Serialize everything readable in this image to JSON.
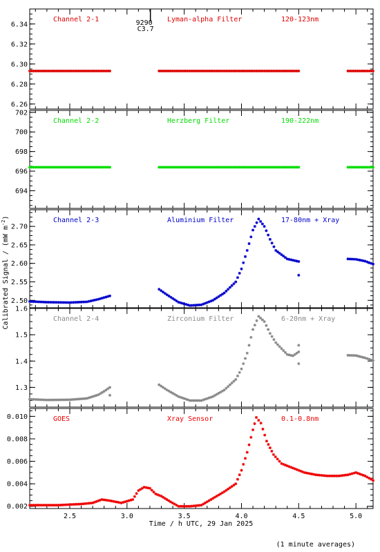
{
  "ylabel": "Calibrated Signal / (mW m",
  "ylabel_sup": "-2",
  "ylabel_end": ")",
  "xlabel": "Time / h UTC, 29 Jan 2025",
  "footnote": "(1 minute averages)",
  "marker_annotation": {
    "text1": "9290",
    "text2": "C3.7",
    "x": 3.15
  },
  "xaxis": {
    "min": 2.15,
    "max": 5.15,
    "ticks": [
      2.5,
      3.0,
      3.5,
      4.0,
      4.5,
      5.0
    ],
    "tick_labels": [
      "2.5",
      "3.0",
      "3.5",
      "4.0",
      "4.5",
      "5.0"
    ]
  },
  "colors": {
    "ch1": "#dd0000",
    "ch2": "#00dd00",
    "ch3": "#0000cc",
    "ch4": "#888888",
    "goes": "#ee0000"
  },
  "chart_data": [
    {
      "type": "scatter",
      "panel": "ch1",
      "labels": [
        "Channel 2-1",
        "Lyman-alpha Filter",
        "120-123nm"
      ],
      "ylim": [
        6.255,
        6.355
      ],
      "yticks": [
        6.26,
        6.28,
        6.3,
        6.32,
        6.34
      ],
      "ytick_labels": [
        "6.26",
        "6.28",
        "6.30",
        "6.32",
        "6.34"
      ],
      "segments": [
        {
          "x": [
            2.15,
            2.85
          ],
          "y": [
            6.293,
            6.293
          ]
        },
        {
          "x": [
            3.28,
            4.5
          ],
          "y": [
            6.293,
            6.293
          ]
        },
        {
          "x": [
            4.93,
            5.15
          ],
          "y": [
            6.293,
            6.293
          ]
        }
      ]
    },
    {
      "type": "scatter",
      "panel": "ch2",
      "labels": [
        "Channel 2-2",
        "Herzberg Filter",
        "190-222nm"
      ],
      "ylim": [
        692.2,
        702.2
      ],
      "yticks": [
        694,
        696,
        698,
        700,
        702
      ],
      "ytick_labels": [
        "694",
        "696",
        "698",
        "700",
        "702"
      ],
      "segments": [
        {
          "x": [
            2.15,
            2.85
          ],
          "y": [
            696.4,
            696.4
          ]
        },
        {
          "x": [
            3.28,
            4.5
          ],
          "y": [
            696.4,
            696.4
          ]
        },
        {
          "x": [
            4.93,
            5.15
          ],
          "y": [
            696.4,
            696.4
          ]
        }
      ]
    },
    {
      "type": "scatter",
      "panel": "ch3",
      "labels": [
        "Channel 2-3",
        "Aluminium Filter",
        "17-80nm + Xray"
      ],
      "ylim": [
        2.48,
        2.745
      ],
      "yticks": [
        2.5,
        2.55,
        2.6,
        2.65,
        2.7
      ],
      "ytick_labels": [
        "2.50",
        "2.55",
        "2.60",
        "2.65",
        "2.70"
      ],
      "segments": [
        {
          "x": [
            2.15,
            2.3,
            2.5,
            2.65,
            2.75,
            2.85
          ],
          "y": [
            2.497,
            2.495,
            2.494,
            2.496,
            2.503,
            2.512
          ]
        },
        {
          "x": [
            3.28,
            3.35,
            3.45,
            3.55,
            3.65,
            3.75,
            3.85,
            3.95,
            4.0,
            4.05,
            4.1,
            4.15,
            4.2,
            4.25,
            4.3,
            4.4,
            4.5
          ],
          "y": [
            2.53,
            2.515,
            2.495,
            2.486,
            2.488,
            2.5,
            2.52,
            2.55,
            2.585,
            2.635,
            2.69,
            2.72,
            2.7,
            2.665,
            2.635,
            2.612,
            2.605
          ]
        },
        {
          "x": [
            4.5
          ],
          "y": [
            2.568
          ]
        },
        {
          "x": [
            4.93,
            5.0,
            5.08,
            5.15
          ],
          "y": [
            2.612,
            2.611,
            2.606,
            2.598
          ]
        }
      ]
    },
    {
      "type": "scatter",
      "panel": "ch4",
      "labels": [
        "Channel 2-4",
        "Zirconium Filter",
        "6-20nm + Xray"
      ],
      "ylim": [
        1.225,
        1.6
      ],
      "yticks": [
        1.3,
        1.4,
        1.5,
        1.6
      ],
      "ytick_labels": [
        "1.3",
        "1.4",
        "1.5",
        "1.6"
      ],
      "segments": [
        {
          "x": [
            2.15,
            2.3,
            2.5,
            2.65,
            2.75,
            2.8,
            2.85
          ],
          "y": [
            1.255,
            1.252,
            1.253,
            1.258,
            1.272,
            1.285,
            1.3
          ]
        },
        {
          "x": [
            2.85
          ],
          "y": [
            1.27
          ]
        },
        {
          "x": [
            3.28,
            3.35,
            3.45,
            3.55,
            3.65,
            3.75,
            3.85,
            3.95,
            4.0,
            4.05,
            4.1,
            4.15,
            4.2,
            4.25,
            4.3,
            4.4,
            4.45,
            4.5
          ],
          "y": [
            1.31,
            1.29,
            1.265,
            1.25,
            1.25,
            1.265,
            1.29,
            1.33,
            1.37,
            1.43,
            1.52,
            1.57,
            1.55,
            1.505,
            1.47,
            1.425,
            1.42,
            1.435
          ]
        },
        {
          "x": [
            4.5
          ],
          "y": [
            1.46
          ]
        },
        {
          "x": [
            4.5
          ],
          "y": [
            1.39
          ]
        },
        {
          "x": [
            4.93,
            5.0,
            5.08,
            5.15
          ],
          "y": [
            1.422,
            1.421,
            1.412,
            1.402
          ]
        }
      ]
    },
    {
      "type": "scatter",
      "panel": "goes",
      "labels": [
        "GOES",
        "Xray Sensor",
        "0.1-0.8nm"
      ],
      "ylim": [
        0.0018,
        0.0107
      ],
      "yticks": [
        0.002,
        0.004,
        0.006,
        0.008,
        0.01
      ],
      "ytick_labels": [
        "0.002",
        "0.004",
        "0.006",
        "0.008",
        "0.010"
      ],
      "segments": [
        {
          "x": [
            2.15,
            2.4,
            2.6,
            2.7,
            2.78,
            2.85,
            2.95,
            3.05,
            3.1,
            3.15,
            3.2,
            3.25,
            3.3,
            3.38,
            3.45,
            3.55,
            3.65,
            3.75,
            3.85,
            3.95,
            4.0,
            4.05,
            4.1,
            4.13,
            4.17,
            4.22,
            4.28,
            4.35,
            4.45,
            4.55,
            4.65,
            4.75,
            4.85,
            4.93,
            5.0,
            5.08,
            5.15
          ],
          "y": [
            0.0021,
            0.0021,
            0.0022,
            0.0023,
            0.0026,
            0.0025,
            0.0023,
            0.0026,
            0.0034,
            0.0037,
            0.0036,
            0.0031,
            0.0029,
            0.0024,
            0.002,
            0.002,
            0.0021,
            0.0027,
            0.0033,
            0.004,
            0.0052,
            0.0068,
            0.0088,
            0.0099,
            0.0094,
            0.0078,
            0.0066,
            0.0058,
            0.0054,
            0.005,
            0.0048,
            0.0047,
            0.0047,
            0.0048,
            0.005,
            0.0047,
            0.0043
          ]
        }
      ]
    }
  ]
}
